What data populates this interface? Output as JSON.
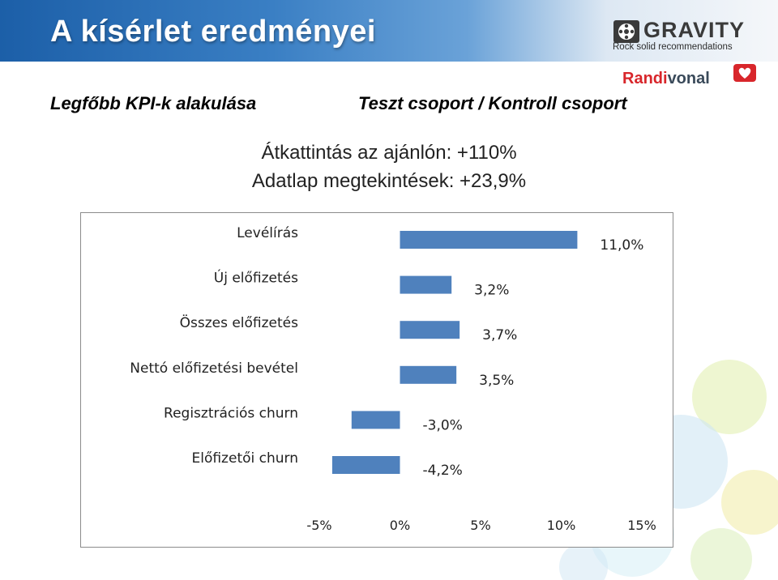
{
  "slide": {
    "title": "A kísérlet eredményei",
    "kpi_heading": "Legfőbb KPI-k alakulása",
    "group_heading": "Teszt csoport / Kontroll csoport",
    "stats": [
      "Átkattintás az ajánlón: +110%",
      "Adatlap megtekintések: +23,9%"
    ]
  },
  "logo": {
    "wordmark": "GRAVITY",
    "tagline": "Rock solid recommendations",
    "brand_part1": "Randi",
    "brand_part2": "vonal",
    "icon": "film-reel-icon",
    "brand_icon": "heart-icon"
  },
  "colors": {
    "bar": "#4f81bd",
    "header_start": "#1c5fa8",
    "brand_red": "#d8262b"
  },
  "chart_data": {
    "type": "bar",
    "orientation": "horizontal",
    "categories": [
      "Levélírás",
      "Új előfizetés",
      "Összes előfizetés",
      "Nettó előfizetési bevétel",
      "Regisztrációs churn",
      "Előfizetői churn"
    ],
    "values": [
      11.0,
      3.2,
      3.7,
      3.5,
      -3.0,
      -4.2
    ],
    "value_labels": [
      "11,0%",
      "3,2%",
      "3,7%",
      "3,5%",
      "-3,0%",
      "-4,2%"
    ],
    "xlim": [
      -5,
      15
    ],
    "ticks": [
      -5,
      0,
      5,
      10,
      15
    ],
    "tick_labels": [
      "-5%",
      "0%",
      "5%",
      "10%",
      "15%"
    ],
    "grid": false,
    "legend": "none",
    "title": "",
    "xlabel": "",
    "ylabel": ""
  }
}
